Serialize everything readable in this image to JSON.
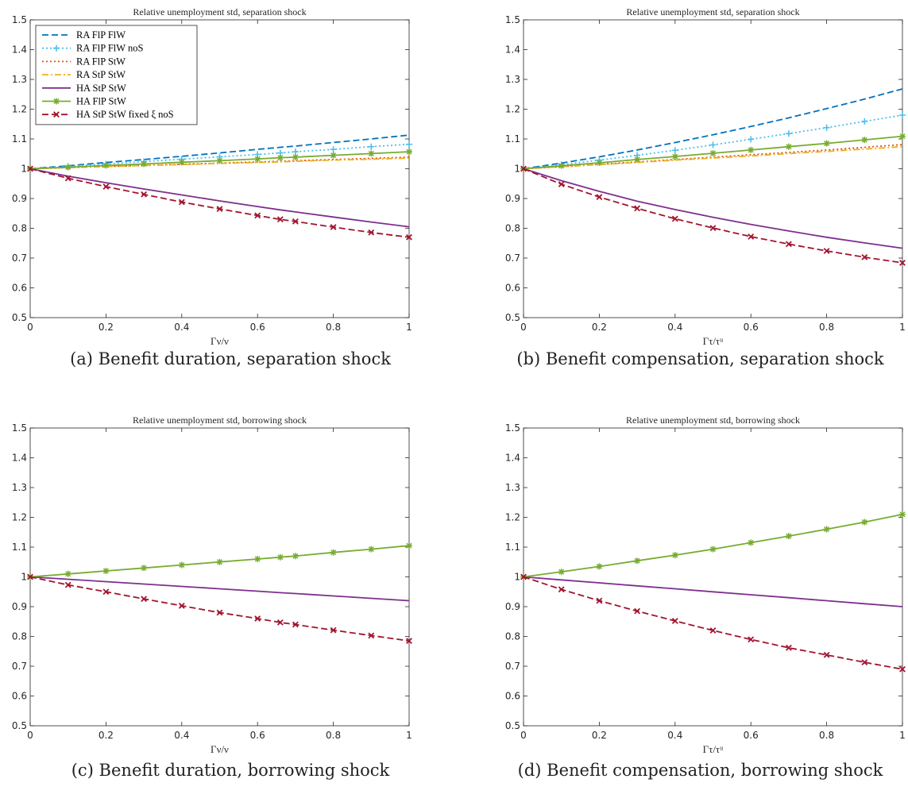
{
  "chart_data": [
    {
      "type": "line",
      "title": "Relative unemployment std, separation shock",
      "xlabel": "Γν/ν",
      "ylabel": "",
      "xlim": [
        0,
        1
      ],
      "ylim": [
        0.5,
        1.5
      ],
      "xticks": [
        "0",
        "0.2",
        "0.4",
        "0.6",
        "0.8",
        "1"
      ],
      "yticks": [
        "0.5",
        "0.6",
        "0.7",
        "0.8",
        "0.9",
        "1",
        "1.1",
        "1.2",
        "1.3",
        "1.4",
        "1.5"
      ],
      "legend": "top-left",
      "caption": "(a) Benefit duration, separation shock",
      "series": [
        {
          "name": "RA FlP FlW",
          "color": "#0072BD",
          "style": "dashed",
          "marker": "none",
          "x": [
            0,
            0.1,
            0.2,
            0.3,
            0.4,
            0.5,
            0.6,
            0.66,
            0.7,
            0.8,
            0.9,
            1
          ],
          "y": [
            1.0,
            1.01,
            1.021,
            1.031,
            1.042,
            1.053,
            1.065,
            1.072,
            1.076,
            1.088,
            1.1,
            1.113
          ]
        },
        {
          "name": "RA FlP FlW noS",
          "color": "#4DBEEE",
          "style": "dotted",
          "marker": "plus",
          "x": [
            0,
            0.1,
            0.2,
            0.3,
            0.4,
            0.5,
            0.6,
            0.66,
            0.7,
            0.8,
            0.9,
            1
          ],
          "y": [
            1.0,
            1.008,
            1.016,
            1.024,
            1.032,
            1.04,
            1.048,
            1.053,
            1.057,
            1.065,
            1.074,
            1.082
          ]
        },
        {
          "name": "RA FlP StW",
          "color": "#D95319",
          "style": "dotted",
          "marker": "none",
          "x": [
            0,
            0.1,
            0.2,
            0.3,
            0.4,
            0.5,
            0.6,
            0.66,
            0.7,
            0.8,
            0.9,
            1
          ],
          "y": [
            1.0,
            1.004,
            1.008,
            1.011,
            1.015,
            1.019,
            1.023,
            1.025,
            1.027,
            1.031,
            1.035,
            1.039
          ]
        },
        {
          "name": "RA StP StW",
          "color": "#EDB120",
          "style": "dashdot",
          "marker": "none",
          "x": [
            0,
            0.1,
            0.2,
            0.3,
            0.4,
            0.5,
            0.6,
            0.66,
            0.7,
            0.8,
            0.9,
            1
          ],
          "y": [
            1.0,
            1.004,
            1.007,
            1.011,
            1.014,
            1.018,
            1.021,
            1.023,
            1.025,
            1.029,
            1.032,
            1.036
          ]
        },
        {
          "name": "HA StP StW",
          "color": "#7E2F8E",
          "style": "solid",
          "marker": "none",
          "x": [
            0,
            0.1,
            0.2,
            0.3,
            0.4,
            0.5,
            0.6,
            0.66,
            0.7,
            0.8,
            0.9,
            1
          ],
          "y": [
            1.0,
            0.975,
            0.953,
            0.932,
            0.912,
            0.892,
            0.873,
            0.862,
            0.855,
            0.838,
            0.821,
            0.805
          ]
        },
        {
          "name": "HA FlP StW",
          "color": "#77AC30",
          "style": "solid",
          "marker": "star",
          "x": [
            0,
            0.1,
            0.2,
            0.3,
            0.4,
            0.5,
            0.6,
            0.66,
            0.7,
            0.8,
            0.9,
            1
          ],
          "y": [
            1.0,
            1.005,
            1.011,
            1.016,
            1.022,
            1.027,
            1.033,
            1.037,
            1.039,
            1.045,
            1.051,
            1.057
          ]
        },
        {
          "name": "HA StP StW fixed ξ noS",
          "color": "#A2142F",
          "style": "dashed",
          "marker": "x",
          "x": [
            0,
            0.1,
            0.2,
            0.3,
            0.4,
            0.5,
            0.6,
            0.66,
            0.7,
            0.8,
            0.9,
            1
          ],
          "y": [
            1.0,
            0.968,
            0.94,
            0.914,
            0.888,
            0.865,
            0.843,
            0.83,
            0.823,
            0.804,
            0.786,
            0.77
          ]
        }
      ]
    },
    {
      "type": "line",
      "title": "Relative unemployment std, separation shock",
      "xlabel": "Γτ/τᵘ",
      "ylabel": "",
      "xlim": [
        0,
        1
      ],
      "ylim": [
        0.5,
        1.5
      ],
      "xticks": [
        "0",
        "0.2",
        "0.4",
        "0.6",
        "0.8",
        "1"
      ],
      "yticks": [
        "0.5",
        "0.6",
        "0.7",
        "0.8",
        "0.9",
        "1",
        "1.1",
        "1.2",
        "1.3",
        "1.4",
        "1.5"
      ],
      "legend": "none",
      "caption": "(b) Benefit compensation, separation shock",
      "series": [
        {
          "color": "#0072BD",
          "style": "dashed",
          "marker": "none",
          "x": [
            0,
            0.1,
            0.2,
            0.3,
            0.4,
            0.5,
            0.6,
            0.7,
            0.8,
            0.9,
            1
          ],
          "y": [
            1.0,
            1.019,
            1.04,
            1.063,
            1.088,
            1.114,
            1.142,
            1.171,
            1.202,
            1.234,
            1.268
          ]
        },
        {
          "color": "#4DBEEE",
          "style": "dotted",
          "marker": "plus",
          "x": [
            0,
            0.1,
            0.2,
            0.3,
            0.4,
            0.5,
            0.6,
            0.7,
            0.8,
            0.9,
            1
          ],
          "y": [
            1.0,
            1.014,
            1.029,
            1.045,
            1.062,
            1.08,
            1.099,
            1.118,
            1.138,
            1.159,
            1.18
          ]
        },
        {
          "color": "#D95319",
          "style": "dotted",
          "marker": "none",
          "x": [
            0,
            0.1,
            0.2,
            0.3,
            0.4,
            0.5,
            0.6,
            0.7,
            0.8,
            0.9,
            1
          ],
          "y": [
            1.0,
            1.007,
            1.015,
            1.023,
            1.031,
            1.039,
            1.047,
            1.055,
            1.063,
            1.072,
            1.081
          ]
        },
        {
          "color": "#EDB120",
          "style": "dashdot",
          "marker": "none",
          "x": [
            0,
            0.1,
            0.2,
            0.3,
            0.4,
            0.5,
            0.6,
            0.7,
            0.8,
            0.9,
            1
          ],
          "y": [
            1.0,
            1.007,
            1.014,
            1.021,
            1.029,
            1.036,
            1.043,
            1.051,
            1.058,
            1.066,
            1.074
          ]
        },
        {
          "color": "#7E2F8E",
          "style": "solid",
          "marker": "none",
          "x": [
            0,
            0.1,
            0.2,
            0.3,
            0.4,
            0.5,
            0.6,
            0.7,
            0.8,
            0.9,
            1
          ],
          "y": [
            1.0,
            0.96,
            0.924,
            0.891,
            0.863,
            0.837,
            0.813,
            0.791,
            0.77,
            0.751,
            0.733
          ]
        },
        {
          "color": "#77AC30",
          "style": "solid",
          "marker": "star",
          "x": [
            0,
            0.1,
            0.2,
            0.3,
            0.4,
            0.5,
            0.6,
            0.7,
            0.8,
            0.9,
            1
          ],
          "y": [
            1.0,
            1.01,
            1.02,
            1.031,
            1.041,
            1.052,
            1.063,
            1.074,
            1.085,
            1.097,
            1.109
          ]
        },
        {
          "color": "#A2142F",
          "style": "dashed",
          "marker": "x",
          "x": [
            0,
            0.1,
            0.2,
            0.3,
            0.4,
            0.5,
            0.6,
            0.7,
            0.8,
            0.9,
            1
          ],
          "y": [
            1.0,
            0.948,
            0.905,
            0.867,
            0.832,
            0.801,
            0.772,
            0.747,
            0.724,
            0.703,
            0.684
          ]
        }
      ]
    },
    {
      "type": "line",
      "title": "Relative unemployment std, borrowing shock",
      "xlabel": "Γν/ν",
      "ylabel": "",
      "xlim": [
        0,
        1
      ],
      "ylim": [
        0.5,
        1.5
      ],
      "xticks": [
        "0",
        "0.2",
        "0.4",
        "0.6",
        "0.8",
        "1"
      ],
      "yticks": [
        "0.5",
        "0.6",
        "0.7",
        "0.8",
        "0.9",
        "1",
        "1.1",
        "1.2",
        "1.3",
        "1.4",
        "1.5"
      ],
      "legend": "none",
      "caption": "(c) Benefit duration, borrowing shock",
      "series": [
        {
          "color": "#7E2F8E",
          "style": "solid",
          "marker": "none",
          "x": [
            0,
            0.1,
            0.2,
            0.3,
            0.4,
            0.5,
            0.6,
            0.66,
            0.7,
            0.8,
            0.9,
            1
          ],
          "y": [
            1.0,
            0.992,
            0.984,
            0.976,
            0.968,
            0.96,
            0.952,
            0.947,
            0.944,
            0.936,
            0.928,
            0.92
          ]
        },
        {
          "color": "#77AC30",
          "style": "solid",
          "marker": "star",
          "x": [
            0,
            0.1,
            0.2,
            0.3,
            0.4,
            0.5,
            0.6,
            0.66,
            0.7,
            0.8,
            0.9,
            1
          ],
          "y": [
            1.0,
            1.01,
            1.02,
            1.03,
            1.04,
            1.05,
            1.06,
            1.066,
            1.07,
            1.082,
            1.093,
            1.105
          ]
        },
        {
          "color": "#A2142F",
          "style": "dashed",
          "marker": "x",
          "x": [
            0,
            0.1,
            0.2,
            0.3,
            0.4,
            0.5,
            0.6,
            0.66,
            0.7,
            0.8,
            0.9,
            1
          ],
          "y": [
            1.0,
            0.973,
            0.95,
            0.926,
            0.903,
            0.88,
            0.86,
            0.847,
            0.84,
            0.821,
            0.803,
            0.785
          ]
        }
      ]
    },
    {
      "type": "line",
      "title": "Relative unemployment std, borrowing shock",
      "xlabel": "Γτ/τᵘ",
      "ylabel": "",
      "xlim": [
        0,
        1
      ],
      "ylim": [
        0.5,
        1.5
      ],
      "xticks": [
        "0",
        "0.2",
        "0.4",
        "0.6",
        "0.8",
        "1"
      ],
      "yticks": [
        "0.5",
        "0.6",
        "0.7",
        "0.8",
        "0.9",
        "1",
        "1.1",
        "1.2",
        "1.3",
        "1.4",
        "1.5"
      ],
      "legend": "none",
      "caption": "(d) Benefit compensation, borrowing shock",
      "series": [
        {
          "color": "#7E2F8E",
          "style": "solid",
          "marker": "none",
          "x": [
            0,
            0.1,
            0.2,
            0.3,
            0.4,
            0.5,
            0.6,
            0.7,
            0.8,
            0.9,
            1
          ],
          "y": [
            1.0,
            0.99,
            0.98,
            0.97,
            0.96,
            0.95,
            0.94,
            0.93,
            0.92,
            0.91,
            0.9
          ]
        },
        {
          "color": "#77AC30",
          "style": "solid",
          "marker": "star",
          "x": [
            0,
            0.1,
            0.2,
            0.3,
            0.4,
            0.5,
            0.6,
            0.7,
            0.8,
            0.9,
            1
          ],
          "y": [
            1.0,
            1.017,
            1.035,
            1.054,
            1.073,
            1.093,
            1.115,
            1.137,
            1.16,
            1.184,
            1.21
          ]
        },
        {
          "color": "#A2142F",
          "style": "dashed",
          "marker": "x",
          "x": [
            0,
            0.1,
            0.2,
            0.3,
            0.4,
            0.5,
            0.6,
            0.7,
            0.8,
            0.9,
            1
          ],
          "y": [
            1.0,
            0.958,
            0.92,
            0.885,
            0.852,
            0.82,
            0.79,
            0.762,
            0.738,
            0.713,
            0.69
          ]
        }
      ]
    }
  ]
}
